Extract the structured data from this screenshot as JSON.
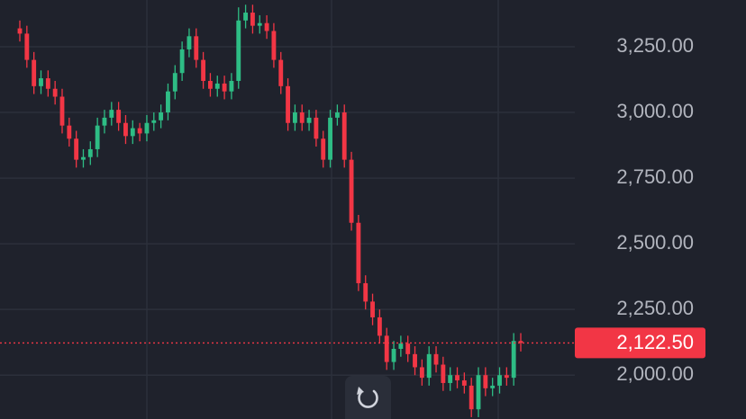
{
  "chart_data": {
    "type": "candlestick",
    "ylim": [
      1833,
      3428
    ],
    "yticks": [
      {
        "value": 2000,
        "label": "2,000.00"
      },
      {
        "value": 2250,
        "label": "2,250.00"
      },
      {
        "value": 2500,
        "label": "2,500.00"
      },
      {
        "value": 2750,
        "label": "2,750.00"
      },
      {
        "value": 3000,
        "label": "3,000.00"
      },
      {
        "value": 3250,
        "label": "3,250.00"
      }
    ],
    "grid": true,
    "up_color": "#2ebd85",
    "down_color": "#f23645",
    "last_price": {
      "value": 2122.5,
      "label": "2,122.50"
    },
    "open": [
      3320,
      3300,
      3200,
      3100,
      3130,
      3090,
      3060,
      2950,
      2900,
      2820,
      2830,
      2860,
      2950,
      2980,
      3010,
      2960,
      2910,
      2940,
      2920,
      2960,
      2970,
      3000,
      3080,
      3150,
      3240,
      3290,
      3200,
      3120,
      3090,
      3110,
      3080,
      3120,
      3350,
      3380,
      3330,
      3340,
      3310,
      3200,
      3100,
      2960,
      3000,
      2960,
      2980,
      2900,
      2820,
      2980,
      3000,
      2820,
      2580,
      2350,
      2280,
      2220,
      2150,
      2050,
      2100,
      2120,
      2080,
      2030,
      1990,
      2080,
      2040,
      1970,
      2000,
      1980,
      1960,
      1870,
      2000,
      1950,
      1960,
      2000,
      1990,
      2130
    ],
    "high": [
      3350,
      3330,
      3230,
      3160,
      3160,
      3120,
      3090,
      2980,
      2930,
      2860,
      2890,
      2980,
      3010,
      3040,
      3040,
      2990,
      2970,
      2960,
      2990,
      3000,
      3030,
      3110,
      3180,
      3270,
      3320,
      3320,
      3230,
      3150,
      3140,
      3140,
      3150,
      3400,
      3410,
      3410,
      3370,
      3370,
      3340,
      3230,
      3130,
      3030,
      3030,
      3010,
      3010,
      2930,
      3010,
      3030,
      3030,
      2850,
      2610,
      2380,
      2310,
      2250,
      2180,
      2130,
      2150,
      2150,
      2110,
      2060,
      2110,
      2110,
      2070,
      2030,
      2030,
      2010,
      1990,
      2030,
      2030,
      1990,
      2030,
      2030,
      2160,
      2160
    ],
    "low": [
      3270,
      3170,
      3070,
      3070,
      3060,
      3030,
      2920,
      2870,
      2790,
      2790,
      2800,
      2830,
      2920,
      2950,
      2930,
      2880,
      2880,
      2890,
      2890,
      2930,
      2940,
      2970,
      3050,
      3120,
      3210,
      3170,
      3090,
      3060,
      3060,
      3050,
      3050,
      3090,
      3320,
      3300,
      3300,
      3280,
      3170,
      3070,
      2930,
      2930,
      2930,
      2930,
      2870,
      2790,
      2790,
      2950,
      2790,
      2550,
      2320,
      2250,
      2190,
      2120,
      2020,
      2020,
      2070,
      2050,
      2000,
      1960,
      1960,
      2010,
      1940,
      1940,
      1950,
      1930,
      1840,
      1840,
      1920,
      1920,
      1930,
      1960,
      1960,
      2090
    ],
    "close": [
      3300,
      3200,
      3100,
      3130,
      3090,
      3060,
      2950,
      2900,
      2820,
      2830,
      2860,
      2950,
      2980,
      3010,
      2960,
      2910,
      2940,
      2920,
      2960,
      2970,
      3000,
      3080,
      3150,
      3240,
      3290,
      3200,
      3120,
      3090,
      3110,
      3080,
      3120,
      3350,
      3380,
      3330,
      3340,
      3310,
      3200,
      3100,
      2960,
      3000,
      2960,
      2980,
      2900,
      2820,
      2980,
      3000,
      2820,
      2580,
      2350,
      2280,
      2220,
      2150,
      2050,
      2100,
      2120,
      2080,
      2030,
      1990,
      2080,
      2040,
      1970,
      2000,
      1980,
      1960,
      1870,
      2000,
      1950,
      1960,
      2000,
      1990,
      2130,
      2122.5
    ]
  }
}
